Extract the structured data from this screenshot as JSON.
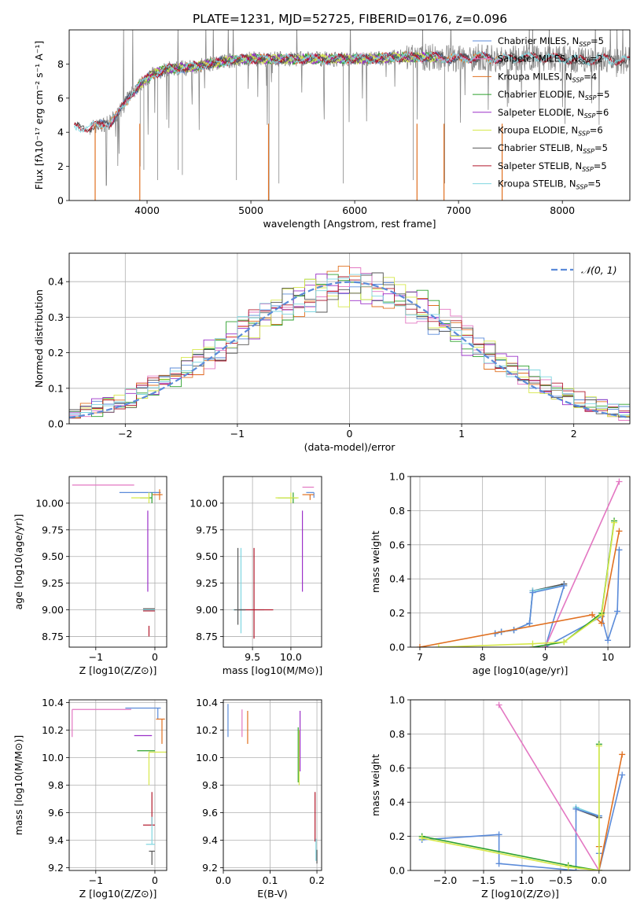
{
  "title": "PLATE=1231, MJD=52725, FIBERID=0176, z=0.096",
  "colors": {
    "chabrier_miles": "#5b8bd9",
    "salpeter_miles": "#e377c2",
    "kroupa_miles": "#e07020",
    "chabrier_elodie": "#2ca02c",
    "salpeter_elodie": "#9b30c8",
    "kroupa_elodie": "#d6e84a",
    "chabrier_stelib": "#555555",
    "salpeter_stelib": "#b2182b",
    "kroupa_stelib": "#7fd6e0",
    "data": "#888888",
    "grid": "#b0b0b0"
  },
  "chart_data": [
    {
      "id": "spectrum",
      "type": "line",
      "xlabel": "wavelength [Angstrom, rest frame]",
      "ylabel": "Flux [fλ10⁻¹⁷ erg cm⁻² s⁻¹ A⁻¹]",
      "xlim": [
        3250,
        8650
      ],
      "ylim": [
        0,
        10
      ],
      "xticks": [
        4000,
        5000,
        6000,
        7000,
        8000
      ],
      "yticks": [
        0,
        2,
        4,
        6,
        8
      ],
      "grid": false,
      "legend_position": "upper-right",
      "legend": [
        {
          "label": "Chabrier MILES, N_SSP=5",
          "color_key": "chabrier_miles"
        },
        {
          "label": "Salpeter MILES, N_SSP=2",
          "color_key": "salpeter_miles"
        },
        {
          "label": "Kroupa MILES, N_SSP=4",
          "color_key": "kroupa_miles"
        },
        {
          "label": "Chabrier ELODIE, N_SSP=5",
          "color_key": "chabrier_elodie"
        },
        {
          "label": "Salpeter ELODIE, N_SSP=6",
          "color_key": "salpeter_elodie"
        },
        {
          "label": "Kroupa ELODIE, N_SSP=6",
          "color_key": "kroupa_elodie"
        },
        {
          "label": "Chabrier STELIB, N_SSP=5",
          "color_key": "chabrier_stelib"
        },
        {
          "label": "Salpeter STELIB, N_SSP=5",
          "color_key": "salpeter_stelib"
        },
        {
          "label": "Kroupa STELIB, N_SSP=5",
          "color_key": "kroupa_stelib"
        }
      ],
      "continuum": [
        [
          3450,
          4.3
        ],
        [
          3550,
          4.4
        ],
        [
          3650,
          4.6
        ],
        [
          3750,
          5.3
        ],
        [
          3850,
          6.3
        ],
        [
          3950,
          6.9
        ],
        [
          4050,
          7.4
        ],
        [
          4200,
          7.7
        ],
        [
          4400,
          7.8
        ],
        [
          4600,
          8.0
        ],
        [
          4800,
          8.2
        ],
        [
          5000,
          8.3
        ],
        [
          5200,
          8.3
        ],
        [
          5400,
          8.3
        ],
        [
          5600,
          8.3
        ],
        [
          5800,
          8.3
        ],
        [
          6000,
          8.3
        ],
        [
          6200,
          8.3
        ],
        [
          6400,
          8.4
        ],
        [
          6600,
          8.4
        ],
        [
          6800,
          8.4
        ],
        [
          7000,
          8.3
        ],
        [
          7200,
          8.4
        ],
        [
          7400,
          8.3
        ],
        [
          7600,
          8.4
        ],
        [
          7800,
          8.4
        ],
        [
          8000,
          8.3
        ],
        [
          8200,
          8.2
        ],
        [
          8400,
          8.3
        ],
        [
          8600,
          8.2
        ]
      ],
      "absorption_lines": [
        [
          3934,
          2.0
        ],
        [
          3969,
          1.8
        ],
        [
          4102,
          1.2
        ],
        [
          4300,
          1.8
        ],
        [
          4340,
          1.5
        ],
        [
          4861,
          1.2
        ],
        [
          5175,
          8.3
        ],
        [
          5270,
          1.0
        ],
        [
          5890,
          1.0
        ],
        [
          6563,
          1.2
        ],
        [
          6867,
          1.0
        ]
      ],
      "model_spikes": [
        [
          3500,
          0.0
        ],
        [
          3930,
          0.0
        ],
        [
          5170,
          0.0
        ],
        [
          6600,
          0.0
        ],
        [
          6860,
          0.0
        ],
        [
          7420,
          0.0
        ]
      ]
    },
    {
      "id": "residuals",
      "type": "histogram",
      "xlabel": "(data-model)/error",
      "ylabel": "Normed distribution",
      "xlim": [
        -2.5,
        2.5
      ],
      "ylim": [
        0,
        0.48
      ],
      "xticks": [
        -2,
        -1,
        0,
        1,
        2
      ],
      "yticks": [
        0.0,
        0.1,
        0.2,
        0.3,
        0.4
      ],
      "grid": true,
      "legend_position": "upper-right",
      "legend_label": "𝒩(0, 1)",
      "bin_width": 0.1
    },
    {
      "id": "age-z",
      "type": "scatter",
      "xlabel": "Z [log10(Z/Z⊙)]",
      "ylabel": "age  [log10(age/yr)]",
      "xlim": [
        -1.45,
        0.2
      ],
      "ylim": [
        8.65,
        10.25
      ],
      "xticks": [
        -1,
        0
      ],
      "yticks": [
        8.75,
        9.0,
        9.25,
        9.5,
        9.75,
        10.0
      ],
      "grid": true,
      "errorbars": [
        {
          "c": "salpeter_miles",
          "x": -1.4,
          "xl": 0.0,
          "xr": 1.05,
          "y": 10.17,
          "yl": 0.0,
          "yr": 0.0
        },
        {
          "c": "chabrier_miles",
          "x": 0.0,
          "xl": 0.6,
          "xr": 0.1,
          "y": 10.1,
          "yl": 0.0,
          "yr": 0.0
        },
        {
          "c": "kroupa_miles",
          "x": 0.08,
          "xl": 0.12,
          "xr": 0.05,
          "y": 10.08,
          "yl": 0.05,
          "yr": 0.05
        },
        {
          "c": "chabrier_elodie",
          "x": -0.05,
          "xl": 0.2,
          "xr": 0.0,
          "y": 10.05,
          "yl": 0.05,
          "yr": 0.05
        },
        {
          "c": "kroupa_elodie",
          "x": -0.1,
          "xl": 0.3,
          "xr": 0.0,
          "y": 10.05,
          "yl": 0.05,
          "yr": 0.05
        },
        {
          "c": "salpeter_elodie",
          "x": -0.12,
          "xl": 0.0,
          "xr": 0.0,
          "y": 9.55,
          "yl": 0.38,
          "yr": 0.38
        },
        {
          "c": "kroupa_stelib",
          "x": -0.1,
          "xl": 0.1,
          "xr": 0.1,
          "y": 9.0,
          "yl": 0.0,
          "yr": 0.0
        },
        {
          "c": "salpeter_stelib",
          "x": -0.1,
          "xl": 0.1,
          "xr": 0.1,
          "y": 8.99,
          "yl": 0.0,
          "yr": 0.0
        },
        {
          "c": "chabrier_stelib",
          "x": -0.1,
          "xl": 0.1,
          "xr": 0.1,
          "y": 9.01,
          "yl": 0.0,
          "yr": 0.0
        },
        {
          "c": "salpeter_stelib",
          "x": -0.1,
          "xl": 0.0,
          "xr": 0.0,
          "y": 8.85,
          "yl": 0.1,
          "yr": 0.0
        }
      ]
    },
    {
      "id": "age-mass",
      "type": "scatter",
      "xlabel": "mass [log10(M/M⊙)]",
      "ylabel": "",
      "xlim": [
        9.12,
        10.4
      ],
      "ylim": [
        8.65,
        10.25
      ],
      "xticks": [
        9.5,
        10.0
      ],
      "yticks": [
        8.75,
        9.0,
        9.25,
        9.5,
        9.75,
        10.0
      ],
      "grid": true,
      "errorbars": [
        {
          "c": "salpeter_miles",
          "x": 10.2,
          "xl": 0.05,
          "xr": 0.1,
          "y": 10.15,
          "yl": 0.0,
          "yr": 0.0
        },
        {
          "c": "chabrier_miles",
          "x": 10.3,
          "xl": 0.1,
          "xr": 0.0,
          "y": 10.1,
          "yl": 0.05,
          "yr": 0.0
        },
        {
          "c": "kroupa_miles",
          "x": 10.25,
          "xl": 0.1,
          "xr": 0.05,
          "y": 10.08,
          "yl": 0.05,
          "yr": 0.0
        },
        {
          "c": "chabrier_elodie",
          "x": 10.03,
          "xl": 0.2,
          "xr": 0.05,
          "y": 10.05,
          "yl": 0.05,
          "yr": 0.05
        },
        {
          "c": "kroupa_elodie",
          "x": 10.0,
          "xl": 0.2,
          "xr": 0.1,
          "y": 10.05,
          "yl": 0.05,
          "yr": 0.05
        },
        {
          "c": "salpeter_elodie",
          "x": 10.15,
          "xl": 0.0,
          "xr": 0.0,
          "y": 9.55,
          "yl": 0.38,
          "yr": 0.38
        },
        {
          "c": "kroupa_stelib",
          "x": 9.35,
          "xl": 0.1,
          "xr": 0.3,
          "y": 9.0,
          "yl": 0.22,
          "yr": 0.58
        },
        {
          "c": "salpeter_stelib",
          "x": 9.52,
          "xl": 0.2,
          "xr": 0.25,
          "y": 9.0,
          "yl": 0.27,
          "yr": 0.58
        },
        {
          "c": "chabrier_stelib",
          "x": 9.31,
          "xl": 0.05,
          "xr": 0.1,
          "y": 9.0,
          "yl": 0.14,
          "yr": 0.58
        }
      ]
    },
    {
      "id": "weight-age",
      "type": "line",
      "xlabel": "age  [log10(age/yr)]",
      "ylabel": "mass weight",
      "xlim": [
        6.85,
        10.35
      ],
      "ylim": [
        0.0,
        1.0
      ],
      "xticks": [
        7,
        8,
        9,
        10
      ],
      "yticks": [
        0.0,
        0.2,
        0.4,
        0.6,
        0.8,
        1.0
      ],
      "grid": true,
      "series": [
        {
          "c": "chabrier_stelib",
          "x": [
            8.2,
            8.3,
            8.5,
            8.75,
            8.8,
            9.3
          ],
          "y": [
            0.08,
            0.09,
            0.1,
            0.14,
            0.33,
            0.37
          ]
        },
        {
          "c": "kroupa_stelib",
          "x": [
            8.2,
            8.3,
            8.5,
            8.75,
            8.8,
            9.3
          ],
          "y": [
            0.08,
            0.09,
            0.1,
            0.14,
            0.33,
            0.36
          ]
        },
        {
          "c": "chabrier_miles",
          "x": [
            8.2,
            8.3,
            8.5,
            8.75,
            8.8,
            9.3,
            9.0,
            9.9,
            10.0,
            10.15,
            10.18
          ],
          "y": [
            0.08,
            0.09,
            0.1,
            0.14,
            0.32,
            0.36,
            0.0,
            0.18,
            0.04,
            0.21,
            0.57
          ]
        },
        {
          "c": "salpeter_miles",
          "x": [
            9.0,
            10.18
          ],
          "y": [
            0.0,
            0.97
          ]
        },
        {
          "c": "kroupa_miles",
          "x": [
            7.0,
            9.75,
            9.9,
            10.18
          ],
          "y": [
            0.0,
            0.19,
            0.14,
            0.68
          ]
        },
        {
          "c": "chabrier_elodie",
          "x": [
            8.8,
            9.3,
            9.9,
            10.1
          ],
          "y": [
            0.0,
            0.03,
            0.2,
            0.74
          ]
        },
        {
          "c": "kroupa_elodie",
          "x": [
            7.3,
            8.8,
            9.3,
            9.9,
            10.1
          ],
          "y": [
            0.0,
            0.02,
            0.03,
            0.19,
            0.73
          ]
        }
      ]
    },
    {
      "id": "mass-z",
      "type": "scatter",
      "xlabel": "Z [log10(Z/Z⊙)]",
      "ylabel": "mass [log10(M/M⊙)]",
      "xlim": [
        -1.45,
        0.2
      ],
      "ylim": [
        9.18,
        10.42
      ],
      "xticks": [
        -1,
        0
      ],
      "yticks": [
        9.2,
        9.4,
        9.6,
        9.8,
        10.0,
        10.2,
        10.4
      ],
      "grid": true,
      "errorbars": [
        {
          "c": "salpeter_miles",
          "x": -1.4,
          "xl": 0.0,
          "xr": 1.0,
          "y": 10.35,
          "yl": 0.2,
          "yr": 0.0
        },
        {
          "c": "chabrier_miles",
          "x": 0.05,
          "xl": 0.55,
          "xr": 0.05,
          "y": 10.36,
          "yl": 0.08,
          "yr": 0.0
        },
        {
          "c": "kroupa_miles",
          "x": 0.12,
          "xl": 0.1,
          "xr": 0.05,
          "y": 10.28,
          "yl": 0.18,
          "yr": 0.0
        },
        {
          "c": "salpeter_elodie",
          "x": -0.35,
          "xl": 0.0,
          "xr": 0.3,
          "y": 10.16,
          "yl": 0.0,
          "yr": 0.0
        },
        {
          "c": "chabrier_elodie",
          "x": -0.1,
          "xl": 0.2,
          "xr": 0.1,
          "y": 10.05,
          "yl": 0.0,
          "yr": 0.0
        },
        {
          "c": "kroupa_elodie",
          "x": -0.1,
          "xl": 0.0,
          "xr": 0.3,
          "y": 10.04,
          "yl": 0.24,
          "yr": 0.0
        },
        {
          "c": "salpeter_stelib",
          "x": -0.05,
          "xl": 0.15,
          "xr": 0.05,
          "y": 9.51,
          "yl": 0.0,
          "yr": 0.24
        },
        {
          "c": "kroupa_stelib",
          "x": -0.05,
          "xl": 0.1,
          "xr": 0.05,
          "y": 9.37,
          "yl": 0.0,
          "yr": 0.2
        },
        {
          "c": "chabrier_stelib",
          "x": -0.05,
          "xl": 0.05,
          "xr": 0.05,
          "y": 9.32,
          "yl": 0.1,
          "yr": 0.0
        }
      ]
    },
    {
      "id": "mass-ebv",
      "type": "scatter",
      "xlabel": "E(B-V)",
      "ylabel": "",
      "xlim": [
        0.0,
        0.21
      ],
      "ylim": [
        9.18,
        10.42
      ],
      "xticks": [
        0.0,
        0.1,
        0.2
      ],
      "yticks": [
        9.2,
        9.4,
        9.6,
        9.8,
        10.0,
        10.2,
        10.4
      ],
      "grid": true,
      "errorbars": [
        {
          "c": "chabrier_miles",
          "x": 0.01,
          "y": 10.27,
          "yl": 0.12,
          "yr": 0.12
        },
        {
          "c": "salpeter_miles",
          "x": 0.04,
          "y": 10.25,
          "yl": 0.1,
          "yr": 0.1
        },
        {
          "c": "kroupa_miles",
          "x": 0.052,
          "y": 10.22,
          "yl": 0.12,
          "yr": 0.12
        },
        {
          "c": "chabrier_elodie",
          "x": 0.16,
          "y": 10.02,
          "yl": 0.2,
          "yr": 0.2
        },
        {
          "c": "kroupa_elodie",
          "x": 0.162,
          "y": 10.0,
          "yl": 0.2,
          "yr": 0.2
        },
        {
          "c": "salpeter_elodie",
          "x": 0.164,
          "y": 10.12,
          "yl": 0.22,
          "yr": 0.22
        },
        {
          "c": "salpeter_stelib",
          "x": 0.196,
          "y": 9.57,
          "yl": 0.18,
          "yr": 0.18
        },
        {
          "c": "kroupa_stelib",
          "x": 0.198,
          "y": 9.33,
          "yl": 0.08,
          "yr": 0.08
        },
        {
          "c": "chabrier_stelib",
          "x": 0.2,
          "y": 9.28,
          "yl": 0.05,
          "yr": 0.05
        }
      ]
    },
    {
      "id": "weight-z",
      "type": "line",
      "xlabel": "Z [log10(Z/Z⊙)]",
      "ylabel": "mass weight",
      "xlim": [
        -2.45,
        0.4
      ],
      "ylim": [
        0.0,
        1.0
      ],
      "xticks": [
        -2.0,
        -1.5,
        -1.0,
        -0.5,
        0.0
      ],
      "yticks": [
        0.0,
        0.2,
        0.4,
        0.6,
        0.8,
        1.0
      ],
      "grid": true,
      "series": [
        {
          "c": "chabrier_stelib",
          "x": [
            -0.3,
            0.0
          ],
          "y": [
            0.36,
            0.31
          ]
        },
        {
          "c": "kroupa_stelib",
          "x": [
            -0.3,
            0.0
          ],
          "y": [
            0.37,
            0.32
          ]
        },
        {
          "c": "chabrier_miles",
          "x": [
            -2.3,
            -1.3,
            -1.3,
            -0.3,
            -0.3,
            0.0,
            0.0,
            0.0,
            0.3
          ],
          "y": [
            0.18,
            0.21,
            0.04,
            0.0,
            0.36,
            0.32,
            0.1,
            0.0,
            0.56
          ]
        },
        {
          "c": "salpeter_miles",
          "x": [
            -1.3,
            0.0
          ],
          "y": [
            0.97,
            0.0
          ]
        },
        {
          "c": "kroupa_miles",
          "x": [
            0.0,
            0.0,
            0.3
          ],
          "y": [
            0.14,
            0.0,
            0.68
          ]
        },
        {
          "c": "chabrier_elodie",
          "x": [
            -2.3,
            -0.4,
            0.0,
            0.0
          ],
          "y": [
            0.2,
            0.03,
            0.0,
            0.74
          ]
        },
        {
          "c": "kroupa_elodie",
          "x": [
            -2.3,
            -0.4,
            0.0,
            0.0
          ],
          "y": [
            0.19,
            0.02,
            0.0,
            0.73
          ]
        }
      ]
    }
  ]
}
